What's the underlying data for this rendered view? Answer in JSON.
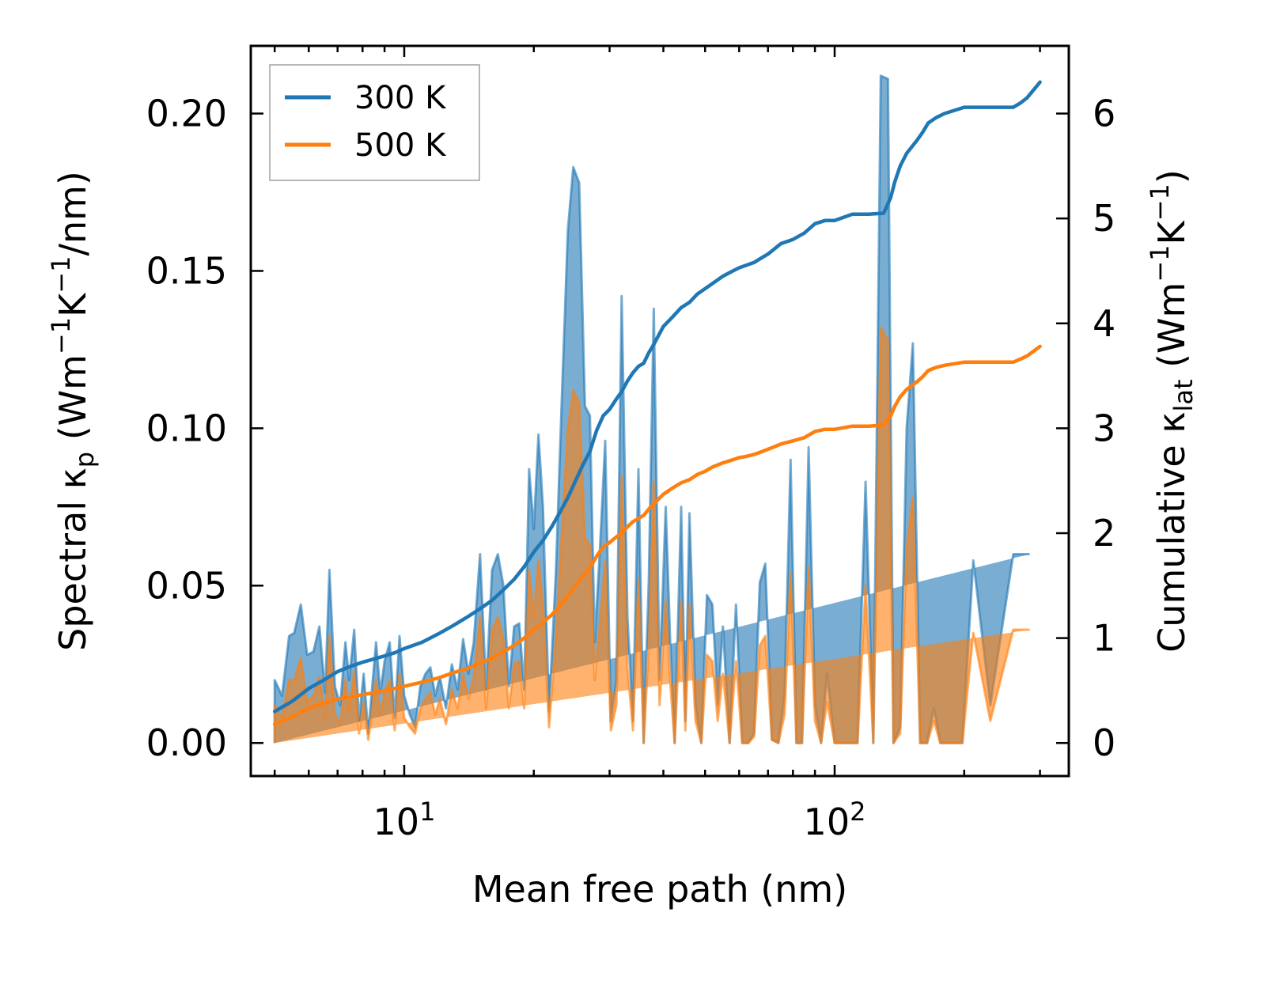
{
  "colors": {
    "series_300": "#1f77b4",
    "series_500": "#ff7f0e",
    "axes": "#000000",
    "legend_border": "#a0a0a0"
  },
  "chart_data": {
    "type": "line",
    "title": "",
    "xlabel": "Mean free path (nm)",
    "ylabel_left_parts": [
      "Spectral κ",
      "p",
      " (Wm",
      "−1",
      "K",
      "−1",
      "/nm)"
    ],
    "ylabel_right_parts": [
      "Cumulative κ",
      "lat",
      " (Wm",
      "−1",
      "K",
      "−1",
      ")"
    ],
    "xscale": "log",
    "xlim": [
      4.4,
      350
    ],
    "ylim_left": [
      -0.0105,
      0.2215
    ],
    "ylim_right": [
      -0.315,
      6.645
    ],
    "x_ticks": [
      {
        "value": 10,
        "base": "10",
        "exp": "1"
      },
      {
        "value": 100,
        "base": "10",
        "exp": "2"
      }
    ],
    "y_ticks_left": [
      {
        "value": 0.0,
        "label": "0.00"
      },
      {
        "value": 0.05,
        "label": "0.05"
      },
      {
        "value": 0.1,
        "label": "0.10"
      },
      {
        "value": 0.15,
        "label": "0.15"
      },
      {
        "value": 0.2,
        "label": "0.20"
      }
    ],
    "y_ticks_right": [
      {
        "value": 0,
        "label": "0"
      },
      {
        "value": 1,
        "label": "1"
      },
      {
        "value": 2,
        "label": "2"
      },
      {
        "value": 3,
        "label": "3"
      },
      {
        "value": 4,
        "label": "4"
      },
      {
        "value": 5,
        "label": "5"
      },
      {
        "value": 6,
        "label": "6"
      }
    ],
    "legend": {
      "position": "upper-left",
      "entries": [
        {
          "label": "300 K",
          "series": "300 K"
        },
        {
          "label": "500 K",
          "series": "500 K"
        }
      ]
    },
    "spectral_x": [
      5,
      5.2,
      5.4,
      5.55,
      5.75,
      5.95,
      6.15,
      6.35,
      6.55,
      6.7,
      6.9,
      7.1,
      7.3,
      7.45,
      7.65,
      7.85,
      8.05,
      8.25,
      8.45,
      8.6,
      8.8,
      9.0,
      9.25,
      9.5,
      9.75,
      10.0,
      10.3,
      10.6,
      10.9,
      11.2,
      11.5,
      11.8,
      12.1,
      12.5,
      12.9,
      13.3,
      13.7,
      14.1,
      14.5,
      15.0,
      15.5,
      16.0,
      16.5,
      17.0,
      17.5,
      18.0,
      18.5,
      19.0,
      19.5,
      20.0,
      20.5,
      21.0,
      21.7,
      22.5,
      23.2,
      24.0,
      24.7,
      25.5,
      26.3,
      27.0,
      27.7,
      28.5,
      29.3,
      30.2,
      31.1,
      32.0,
      33.0,
      34.0,
      35.0,
      36.0,
      37.0,
      38.0,
      39.2,
      40.5,
      41.5,
      42.5,
      44.0,
      45.0,
      46.0,
      47.5,
      49.0,
      50.5,
      52.0,
      53.5,
      55.0,
      57.0,
      59.0,
      61.0,
      63.0,
      65.0,
      67.0,
      69.0,
      71.5,
      74.0,
      76.5,
      79.0,
      81.5,
      84.0,
      87.0,
      90.0,
      93.0,
      96.0,
      100.0,
      104.0,
      108.0,
      113.0,
      118.0,
      123.0,
      128.0,
      133.0,
      137.0,
      142.0,
      147.0,
      152.0,
      158.0,
      164.0,
      170.0,
      176.0,
      183.0,
      190.0,
      198.0,
      210.0,
      230.0,
      260.0,
      268.0,
      276.0,
      284.0,
      292.0,
      300.0
    ],
    "spectral_300": [
      0.02,
      0.015,
      0.034,
      0.035,
      0.044,
      0.028,
      0.029,
      0.037,
      0.016,
      0.055,
      0.018,
      0.012,
      0.032,
      0.02,
      0.036,
      0.007,
      0.022,
      0.003,
      0.02,
      0.032,
      0.016,
      0.026,
      0.032,
      0.008,
      0.034,
      0.015,
      0.009,
      0.005,
      0.018,
      0.022,
      0.024,
      0.015,
      0.021,
      0.011,
      0.025,
      0.017,
      0.033,
      0.022,
      0.032,
      0.06,
      0.017,
      0.055,
      0.06,
      0.05,
      0.018,
      0.037,
      0.038,
      0.017,
      0.087,
      0.068,
      0.098,
      0.075,
      0.01,
      0.054,
      0.107,
      0.163,
      0.183,
      0.178,
      0.107,
      0.104,
      0.032,
      0.062,
      0.096,
      0.007,
      0.02,
      0.142,
      0.04,
      0.007,
      0.087,
      0.0,
      0.052,
      0.138,
      0.02,
      0.075,
      0.032,
      0.0,
      0.075,
      0.007,
      0.073,
      0.012,
      0.0,
      0.047,
      0.044,
      0.012,
      0.037,
      0.0,
      0.044,
      0.0,
      0.0,
      0.003,
      0.051,
      0.057,
      0.001,
      0.0,
      0.015,
      0.09,
      0.0,
      0.0,
      0.094,
      0.012,
      0.0,
      0.022,
      0.0,
      0.0,
      0.0,
      0.0,
      0.083,
      0.0,
      0.212,
      0.211,
      0.0,
      0.005,
      0.1,
      0.127,
      0.0,
      0.0,
      0.011,
      0.0,
      0.0,
      0.0,
      0.0,
      0.058,
      0.012,
      0.06,
      0.06,
      0.06,
      0.06
    ],
    "spectral_500": [
      0.012,
      0.008,
      0.02,
      0.02,
      0.027,
      0.013,
      0.015,
      0.021,
      0.008,
      0.034,
      0.009,
      0.006,
      0.02,
      0.01,
      0.023,
      0.003,
      0.013,
      0.001,
      0.012,
      0.02,
      0.009,
      0.016,
      0.02,
      0.004,
      0.022,
      0.008,
      0.005,
      0.003,
      0.011,
      0.014,
      0.016,
      0.009,
      0.014,
      0.006,
      0.017,
      0.011,
      0.022,
      0.014,
      0.021,
      0.04,
      0.011,
      0.036,
      0.04,
      0.033,
      0.011,
      0.025,
      0.026,
      0.011,
      0.055,
      0.04,
      0.058,
      0.044,
      0.005,
      0.033,
      0.065,
      0.1,
      0.112,
      0.108,
      0.065,
      0.063,
      0.02,
      0.038,
      0.058,
      0.004,
      0.012,
      0.085,
      0.024,
      0.004,
      0.052,
      0.0,
      0.031,
      0.083,
      0.012,
      0.045,
      0.019,
      0.0,
      0.045,
      0.004,
      0.044,
      0.007,
      0.0,
      0.028,
      0.026,
      0.007,
      0.022,
      0.0,
      0.026,
      0.0,
      0.0,
      0.002,
      0.031,
      0.034,
      0.001,
      0.0,
      0.009,
      0.054,
      0.0,
      0.0,
      0.056,
      0.007,
      0.0,
      0.013,
      0.0,
      0.0,
      0.0,
      0.0,
      0.05,
      0.0,
      0.132,
      0.128,
      0.0,
      0.003,
      0.062,
      0.078,
      0.0,
      0.0,
      0.007,
      0.0,
      0.0,
      0.0,
      0.0,
      0.035,
      0.007,
      0.036,
      0.036,
      0.036,
      0.036
    ],
    "cumulative_300_x": [
      5,
      5.5,
      6,
      6.5,
      7,
      7.5,
      8,
      8.5,
      9,
      9.5,
      10,
      11,
      12,
      13,
      14,
      15,
      16,
      17,
      18,
      19,
      20,
      21,
      22,
      23,
      24,
      25,
      26,
      27,
      28,
      29,
      30,
      31,
      32,
      33,
      34,
      35,
      36,
      37,
      38,
      40,
      42,
      44,
      46,
      48,
      50,
      52,
      55,
      58,
      60,
      62,
      65,
      68,
      70,
      72,
      75,
      80,
      85,
      90,
      95,
      100,
      110,
      120,
      130,
      135,
      138,
      142,
      147,
      155,
      160,
      165,
      172,
      180,
      200,
      230,
      260,
      270,
      280,
      300
    ],
    "cumulative_300": [
      0.3,
      0.4,
      0.52,
      0.6,
      0.68,
      0.73,
      0.77,
      0.8,
      0.83,
      0.86,
      0.9,
      0.96,
      1.04,
      1.12,
      1.2,
      1.28,
      1.36,
      1.46,
      1.56,
      1.68,
      1.82,
      1.93,
      2.06,
      2.2,
      2.34,
      2.5,
      2.65,
      2.78,
      2.98,
      3.12,
      3.18,
      3.27,
      3.35,
      3.45,
      3.53,
      3.59,
      3.62,
      3.72,
      3.8,
      3.97,
      4.06,
      4.15,
      4.2,
      4.28,
      4.33,
      4.38,
      4.45,
      4.5,
      4.53,
      4.55,
      4.58,
      4.63,
      4.66,
      4.7,
      4.76,
      4.8,
      4.86,
      4.95,
      4.98,
      4.98,
      5.04,
      5.04,
      5.05,
      5.2,
      5.35,
      5.5,
      5.62,
      5.74,
      5.82,
      5.91,
      5.96,
      6.0,
      6.06,
      6.06,
      6.06,
      6.1,
      6.15,
      6.3
    ],
    "cumulative_500_x": [
      5,
      5.5,
      6,
      6.5,
      7,
      7.5,
      8,
      8.5,
      9,
      9.5,
      10,
      11,
      12,
      13,
      14,
      15,
      16,
      17,
      18,
      19,
      20,
      21,
      22,
      23,
      24,
      25,
      26,
      27,
      28,
      29,
      30,
      31,
      32,
      33,
      34,
      35,
      36,
      37,
      38,
      40,
      42,
      44,
      46,
      48,
      50,
      52,
      55,
      58,
      60,
      62,
      65,
      68,
      70,
      72,
      75,
      80,
      85,
      90,
      95,
      100,
      110,
      120,
      130,
      135,
      138,
      142,
      147,
      155,
      160,
      165,
      172,
      180,
      200,
      230,
      260,
      270,
      280,
      300
    ],
    "cumulative_500": [
      0.18,
      0.25,
      0.33,
      0.38,
      0.42,
      0.44,
      0.46,
      0.48,
      0.5,
      0.52,
      0.54,
      0.58,
      0.62,
      0.67,
      0.71,
      0.76,
      0.81,
      0.87,
      0.93,
      1.0,
      1.08,
      1.15,
      1.22,
      1.31,
      1.4,
      1.5,
      1.59,
      1.67,
      1.78,
      1.87,
      1.91,
      1.96,
      2.0,
      2.06,
      2.11,
      2.14,
      2.17,
      2.23,
      2.28,
      2.37,
      2.43,
      2.48,
      2.51,
      2.56,
      2.59,
      2.63,
      2.67,
      2.7,
      2.72,
      2.73,
      2.75,
      2.78,
      2.8,
      2.82,
      2.85,
      2.88,
      2.91,
      2.97,
      2.99,
      2.99,
      3.02,
      3.02,
      3.03,
      3.12,
      3.21,
      3.3,
      3.37,
      3.44,
      3.49,
      3.55,
      3.58,
      3.6,
      3.63,
      3.63,
      3.63,
      3.66,
      3.69,
      3.78
    ]
  }
}
